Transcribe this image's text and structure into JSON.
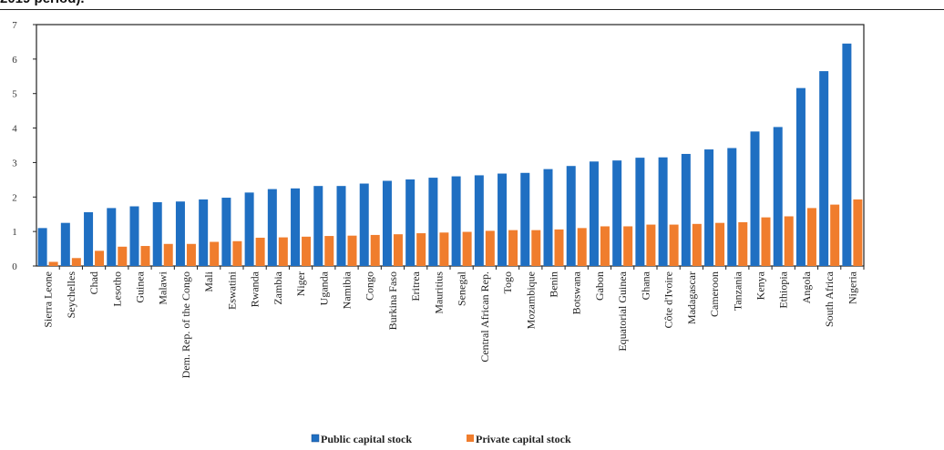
{
  "header": {
    "caption": "2019 period)."
  },
  "chart_data": {
    "type": "bar",
    "title": "",
    "xlabel": "",
    "ylabel": "",
    "ylim": [
      0,
      7
    ],
    "yticks": [
      0,
      1,
      2,
      3,
      4,
      5,
      6,
      7
    ],
    "grid": false,
    "legend_position": "bottom",
    "categories": [
      "Sierra Leone",
      "Seychelles",
      "Chad",
      "Lesotho",
      "Guinea",
      "Malawi",
      "Dem. Rep. of the Congo",
      "Mali",
      "Eswatini",
      "Rwanda",
      "Zambia",
      "Niger",
      "Uganda",
      "Namibia",
      "Congo",
      "Burkina Faso",
      "Eritrea",
      "Mauritius",
      "Senegal",
      "Central African Rep.",
      "Togo",
      "Mozambique",
      "Benin",
      "Botswana",
      "Gabon",
      "Equatorial Guinea",
      "Ghana",
      "Côte d'Ivoire",
      "Madagascar",
      "Cameroon",
      "Tanzania",
      "Kenya",
      "Ethiopia",
      "Angola",
      "South Africa",
      "Nigeria"
    ],
    "series": [
      {
        "name": "Public capital stock",
        "color": "#1f6fc2",
        "values": [
          1.1,
          1.25,
          1.56,
          1.68,
          1.73,
          1.85,
          1.87,
          1.93,
          1.98,
          2.13,
          2.23,
          2.25,
          2.32,
          2.32,
          2.39,
          2.47,
          2.51,
          2.56,
          2.6,
          2.63,
          2.68,
          2.7,
          2.81,
          2.9,
          3.03,
          3.06,
          3.14,
          3.15,
          3.25,
          3.38,
          3.42,
          3.9,
          4.03,
          5.16,
          5.65,
          6.45
        ]
      },
      {
        "name": "Private capital stock",
        "color": "#f07d2d",
        "values": [
          0.12,
          0.23,
          0.44,
          0.56,
          0.58,
          0.64,
          0.64,
          0.7,
          0.72,
          0.82,
          0.83,
          0.85,
          0.87,
          0.88,
          0.9,
          0.92,
          0.95,
          0.97,
          0.99,
          1.02,
          1.04,
          1.04,
          1.06,
          1.1,
          1.15,
          1.15,
          1.2,
          1.2,
          1.22,
          1.25,
          1.27,
          1.41,
          1.44,
          1.68,
          1.78,
          1.93
        ]
      }
    ]
  }
}
